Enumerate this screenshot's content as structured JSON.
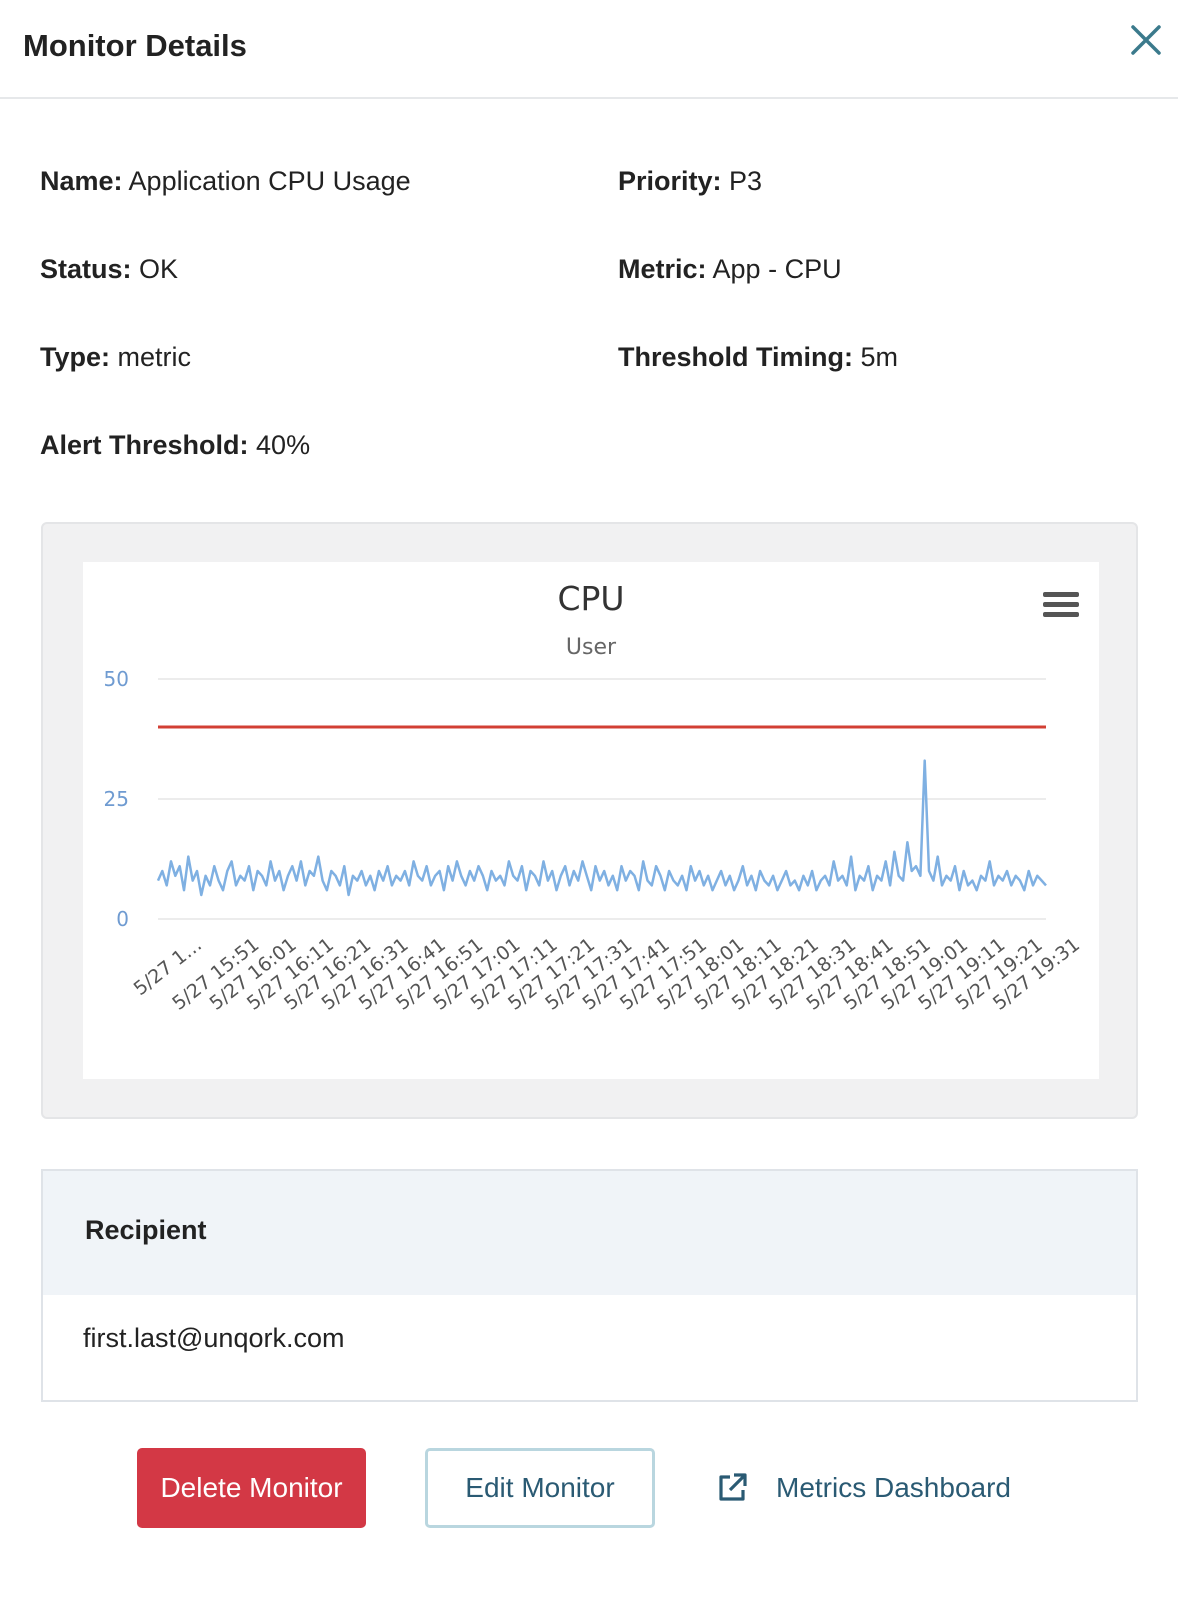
{
  "header": {
    "title": "Monitor Details",
    "close_icon": "close-icon"
  },
  "details": {
    "name": {
      "label": "Name:",
      "value": "Application CPU Usage"
    },
    "priority": {
      "label": "Priority:",
      "value": "P3"
    },
    "status": {
      "label": "Status:",
      "value": "OK"
    },
    "metric": {
      "label": "Metric:",
      "value": "App - CPU"
    },
    "type": {
      "label": "Type:",
      "value": "metric"
    },
    "threshold_timing": {
      "label": "Threshold Timing:",
      "value": "5m"
    },
    "alert_threshold": {
      "label": "Alert Threshold:",
      "value": "40%"
    }
  },
  "chart_data": {
    "type": "line",
    "title": "CPU",
    "subtitle": "User",
    "menu_icon": "hamburger-menu-icon",
    "ylim": [
      0,
      50
    ],
    "yticks": [
      "0",
      "25",
      "50"
    ],
    "grid": true,
    "threshold_line": {
      "value": 40,
      "color": "#d23f34"
    },
    "series_color": "#7fb0e2",
    "x_tick_labels": [
      "5/27 1…",
      "5/27 15:51",
      "5/27 16:01",
      "5/27 16:11",
      "5/27 16:21",
      "5/27 16:31",
      "5/27 16:41",
      "5/27 16:51",
      "5/27 17:01",
      "5/27 17:11",
      "5/27 17:21",
      "5/27 17:31",
      "5/27 17:41",
      "5/27 17:51",
      "5/27 18:01",
      "5/27 18:11",
      "5/27 18:21",
      "5/27 18:31",
      "5/27 18:41",
      "5/27 18:51",
      "5/27 19:01",
      "5/27 19:11",
      "5/27 19:21",
      "5/27 19:31"
    ],
    "series": [
      {
        "values": [
          8,
          10,
          7,
          12,
          9,
          11,
          6,
          13,
          8,
          10,
          5,
          9,
          7,
          11,
          8,
          6,
          10,
          12,
          7,
          9,
          8,
          11,
          6,
          10,
          9,
          7,
          12,
          8,
          10,
          6,
          9,
          11,
          8,
          12,
          7,
          10,
          9,
          13,
          8,
          6,
          10,
          9,
          7,
          11,
          5,
          9,
          8,
          10,
          7,
          9,
          6,
          10,
          8,
          11,
          7,
          9,
          8,
          10,
          7,
          12,
          9,
          8,
          11,
          7,
          9,
          10,
          6,
          11,
          8,
          12,
          9,
          7,
          10,
          8,
          11,
          9,
          6,
          10,
          8,
          9,
          7,
          12,
          9,
          8,
          11,
          6,
          10,
          9,
          7,
          12,
          8,
          10,
          6,
          9,
          11,
          7,
          10,
          8,
          12,
          9,
          6,
          11,
          8,
          10,
          7,
          9,
          6,
          11,
          8,
          10,
          9,
          6,
          12,
          8,
          7,
          11,
          9,
          6,
          10,
          8,
          7,
          9,
          6,
          11,
          8,
          10,
          7,
          9,
          6,
          8,
          10,
          7,
          9,
          6,
          8,
          11,
          7,
          9,
          6,
          10,
          8,
          7,
          9,
          6,
          8,
          10,
          7,
          8,
          6,
          9,
          7,
          10,
          6,
          8,
          9,
          7,
          12,
          8,
          9,
          7,
          13,
          6,
          9,
          8,
          11,
          6,
          9,
          8,
          12,
          7,
          14,
          9,
          8,
          16,
          10,
          11,
          9,
          33,
          10,
          8,
          13,
          7,
          9,
          8,
          11,
          6,
          10,
          7,
          8,
          6,
          9,
          8,
          12,
          7,
          9,
          8,
          10,
          7,
          9,
          8,
          6,
          10,
          7,
          9,
          8,
          7
        ]
      }
    ]
  },
  "recipient": {
    "heading": "Recipient",
    "email": "first.last@unqork.com"
  },
  "actions": {
    "delete_label": "Delete Monitor",
    "edit_label": "Edit Monitor",
    "dashboard_label": "Metrics Dashboard",
    "dashboard_icon": "external-link-icon",
    "delete_color": "#d33845"
  }
}
